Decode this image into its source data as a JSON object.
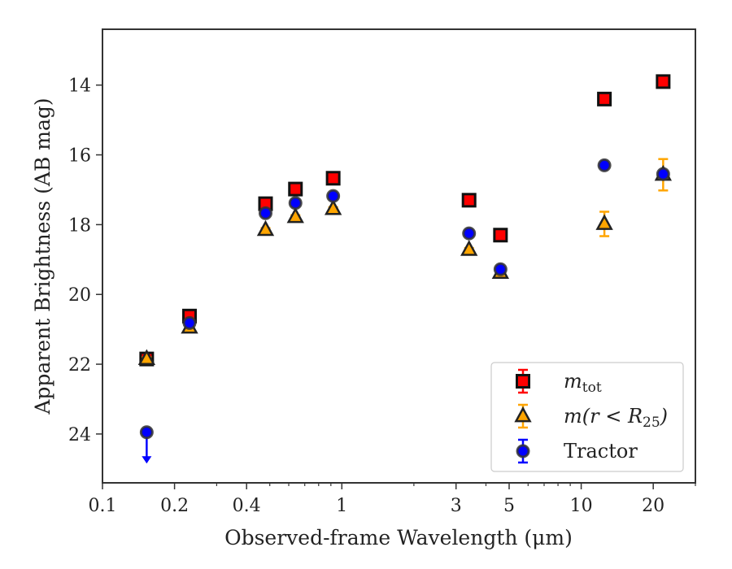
{
  "chart_data": {
    "type": "scatter",
    "xlabel": "Observed-frame Wavelength (μm)",
    "ylabel": "Apparent Brightness (AB mag)",
    "x_scale": "log",
    "xlim": [
      0.1,
      30
    ],
    "ylim": [
      25.4,
      12.4
    ],
    "y_inverted": true,
    "x_ticks": [
      {
        "value": 0.1,
        "label": "0.1"
      },
      {
        "value": 0.2,
        "label": "0.2"
      },
      {
        "value": 0.4,
        "label": "0.4"
      },
      {
        "value": 1,
        "label": "1"
      },
      {
        "value": 3,
        "label": "3"
      },
      {
        "value": 5,
        "label": "5"
      },
      {
        "value": 10,
        "label": "10"
      },
      {
        "value": 20,
        "label": "20"
      }
    ],
    "y_ticks": [
      {
        "value": 14,
        "label": "14"
      },
      {
        "value": 16,
        "label": "16"
      },
      {
        "value": 18,
        "label": "18"
      },
      {
        "value": 20,
        "label": "20"
      },
      {
        "value": 22,
        "label": "22"
      },
      {
        "value": 24,
        "label": "24"
      }
    ],
    "grid": false,
    "legend_position": "bottom-right",
    "legend": [
      {
        "series": "mtot",
        "text_main": "m",
        "text_sub": "tot",
        "text_suffix": ""
      },
      {
        "series": "mr25",
        "text_main": "m(r < R",
        "text_sub": "25",
        "text_suffix": ")"
      },
      {
        "series": "tractor",
        "text_main": "Tractor",
        "text_sub": "",
        "text_suffix": ""
      }
    ],
    "series": [
      {
        "id": "mtot",
        "marker": "square",
        "color": "#ff0000",
        "error_color": "#ff0000",
        "points": [
          {
            "x": 0.153,
            "y": 21.85,
            "err": 0.05
          },
          {
            "x": 0.231,
            "y": 20.62,
            "err": 0.05
          },
          {
            "x": 0.48,
            "y": 17.4,
            "err": 0.05
          },
          {
            "x": 0.64,
            "y": 16.98,
            "err": 0.05
          },
          {
            "x": 0.92,
            "y": 16.67,
            "err": 0.05
          },
          {
            "x": 3.4,
            "y": 17.3,
            "err": 0.05
          },
          {
            "x": 4.6,
            "y": 18.3,
            "err": 0.05
          },
          {
            "x": 12.5,
            "y": 14.4,
            "err": 0.05
          },
          {
            "x": 22.0,
            "y": 13.9,
            "err": 0.05
          }
        ]
      },
      {
        "id": "mr25",
        "marker": "triangle",
        "color": "#ffa500",
        "error_color": "#ffa500",
        "points": [
          {
            "x": 0.153,
            "y": 21.85,
            "err": 0.05
          },
          {
            "x": 0.231,
            "y": 20.95,
            "err": 0.05
          },
          {
            "x": 0.48,
            "y": 18.15,
            "err": 0.05
          },
          {
            "x": 0.64,
            "y": 17.78,
            "err": 0.05
          },
          {
            "x": 0.92,
            "y": 17.55,
            "err": 0.05
          },
          {
            "x": 3.4,
            "y": 18.72,
            "err": 0.05
          },
          {
            "x": 4.6,
            "y": 19.38,
            "err": 0.05
          },
          {
            "x": 12.5,
            "y": 17.98,
            "err": 0.35
          },
          {
            "x": 22.0,
            "y": 16.57,
            "err": 0.45
          }
        ]
      },
      {
        "id": "tractor",
        "marker": "circle",
        "color": "#0000ff",
        "error_color": "#0000ff",
        "points": [
          {
            "x": 0.153,
            "y": 23.95,
            "err": 0.0,
            "upper_limit": true
          },
          {
            "x": 0.231,
            "y": 20.82,
            "err": 0.05
          },
          {
            "x": 0.48,
            "y": 17.67,
            "err": 0.05
          },
          {
            "x": 0.64,
            "y": 17.38,
            "err": 0.05
          },
          {
            "x": 0.92,
            "y": 17.18,
            "err": 0.05
          },
          {
            "x": 3.4,
            "y": 18.25,
            "err": 0.05
          },
          {
            "x": 4.6,
            "y": 19.28,
            "err": 0.05
          },
          {
            "x": 12.5,
            "y": 16.3,
            "err": 0.05
          },
          {
            "x": 22.0,
            "y": 16.55,
            "err": 0.05
          }
        ]
      }
    ]
  }
}
